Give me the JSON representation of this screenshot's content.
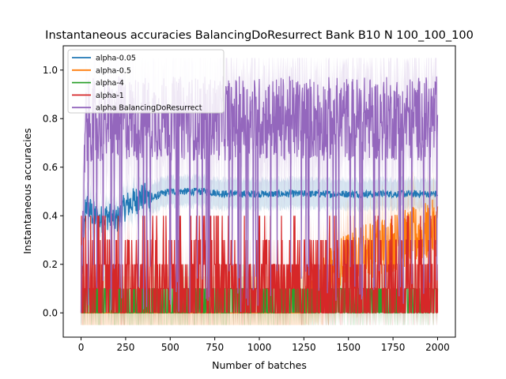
{
  "chart_data": {
    "type": "line",
    "title": "Instantaneous accuracies BalancingDoResurrect Bank B10 N 100_100_100",
    "xlabel": "Number of batches",
    "ylabel": "Instantaneous accuracies",
    "xlim": [
      -100,
      2100
    ],
    "ylim": [
      -0.1,
      1.1
    ],
    "x_ticks": [
      0,
      250,
      500,
      750,
      1000,
      1250,
      1500,
      1750,
      2000
    ],
    "y_ticks": [
      0.0,
      0.2,
      0.4,
      0.6,
      0.8,
      1.0
    ],
    "x_tick_labels": [
      "0",
      "250",
      "500",
      "750",
      "1000",
      "1250",
      "1500",
      "1750",
      "2000"
    ],
    "y_tick_labels": [
      "0.0",
      "0.2",
      "0.4",
      "0.6",
      "0.8",
      "1.0"
    ],
    "grid": false,
    "legend_position": "top-left",
    "n_batches": 2000,
    "series": [
      {
        "name": "alpha-0.05",
        "color": "#1f77b4",
        "summary_x": [
          0,
          25,
          50,
          100,
          150,
          200,
          250,
          300,
          350,
          400,
          450,
          500,
          600,
          700,
          800,
          900,
          1000,
          1200,
          1400,
          1600,
          1800,
          2000
        ],
        "summary_y": [
          0.0,
          0.45,
          0.42,
          0.38,
          0.4,
          0.38,
          0.44,
          0.46,
          0.48,
          0.47,
          0.49,
          0.5,
          0.5,
          0.5,
          0.49,
          0.49,
          0.49,
          0.49,
          0.49,
          0.49,
          0.49,
          0.49
        ],
        "band": 0.06
      },
      {
        "name": "alpha-0.5",
        "color": "#ff7f0e",
        "summary_x": [
          0,
          500,
          1000,
          1200,
          1300,
          1400,
          1500,
          1600,
          1700,
          1800,
          1900,
          2000
        ],
        "summary_y": [
          0.0,
          0.0,
          0.0,
          0.0,
          0.05,
          0.15,
          0.22,
          0.26,
          0.28,
          0.3,
          0.32,
          0.35
        ],
        "band": 0.15
      },
      {
        "name": "alpha-4",
        "color": "#2ca02c",
        "summary_x": [
          0,
          2000
        ],
        "summary_y": [
          0.1,
          0.1
        ],
        "band": 0.1
      },
      {
        "name": "alpha-1",
        "color": "#d62728",
        "summary_x": [
          0,
          2000
        ],
        "summary_y": [
          0.1,
          0.1
        ],
        "levels": [
          0.0,
          0.1,
          0.2,
          0.3,
          0.4
        ],
        "band": 0.1
      },
      {
        "name": "alpha BalancingDoResurrect",
        "color": "#9467bd",
        "summary_x": [
          0,
          25,
          50,
          100,
          200,
          500,
          1000,
          1500,
          2000
        ],
        "summary_y": [
          0.0,
          0.75,
          0.8,
          0.78,
          0.8,
          0.8,
          0.8,
          0.8,
          0.8
        ],
        "band": 0.2
      }
    ]
  }
}
